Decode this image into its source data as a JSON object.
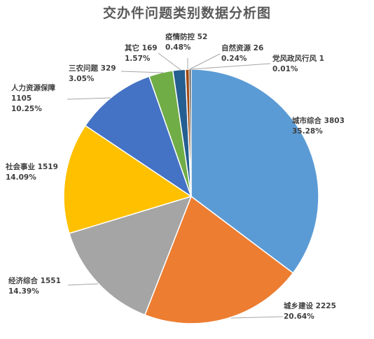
{
  "chart_data": {
    "type": "pie",
    "title": "交办件问题类别数据分析图",
    "start": "12 o'clock",
    "direction": "clockwise",
    "slices": [
      {
        "name": "城市综合",
        "value": 3803,
        "pct": "35.28%",
        "color": "#5B9BD5"
      },
      {
        "name": "城乡建设",
        "value": 2225,
        "pct": "20.64%",
        "color": "#ED7D31"
      },
      {
        "name": "经济综合",
        "value": 1551,
        "pct": "14.39%",
        "color": "#A5A5A5"
      },
      {
        "name": "社会事业",
        "value": 1519,
        "pct": "14.09%",
        "color": "#FFC000"
      },
      {
        "name": "人力资源保障",
        "value": 1105,
        "pct": "10.25%",
        "color": "#4472C4"
      },
      {
        "name": "三农问题",
        "value": 329,
        "pct": "3.05%",
        "color": "#70AD47"
      },
      {
        "name": "其它",
        "value": 169,
        "pct": "1.57%",
        "color": "#255E91"
      },
      {
        "name": "疫情防控",
        "value": 52,
        "pct": "0.48%",
        "color": "#9E480E"
      },
      {
        "name": "自然资源",
        "value": 26,
        "pct": "0.24%",
        "color": "#636363"
      },
      {
        "name": "党风政风行风",
        "value": 1,
        "pct": "0.01%",
        "color": "#997300"
      }
    ]
  }
}
